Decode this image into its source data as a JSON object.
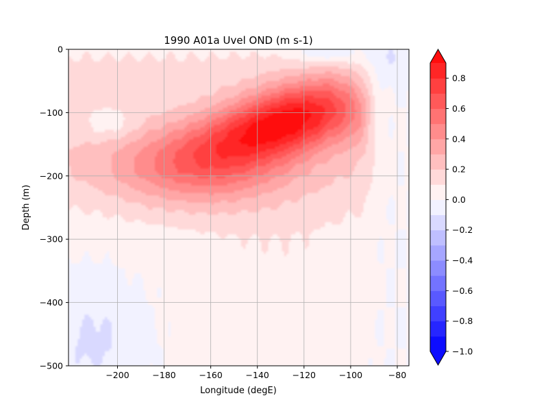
{
  "chart_data": {
    "type": "heatmap",
    "title": "1990 A01a  Uvel OND (m s-1)",
    "xlabel": "Longitude (degE)",
    "ylabel": "Depth (m)",
    "xlim": [
      -221,
      -75
    ],
    "ylim": [
      -500,
      0
    ],
    "x_ticks": [
      -200,
      -180,
      -160,
      -140,
      -120,
      -100,
      -80
    ],
    "y_ticks": [
      0,
      -100,
      -200,
      -300,
      -400,
      -500
    ],
    "grid": true,
    "colorbar": {
      "levels": [
        -1.0,
        -0.9,
        -0.8,
        -0.7,
        -0.6,
        -0.5,
        -0.4,
        -0.3,
        -0.2,
        -0.1,
        0.0,
        0.1,
        0.2,
        0.3,
        0.4,
        0.5,
        0.6,
        0.7,
        0.8,
        0.9
      ],
      "tick_values": [
        0.8,
        0.6,
        0.4,
        0.2,
        0.0,
        -0.2,
        -0.4,
        -0.6,
        -0.8,
        -1.0
      ],
      "tick_labels": [
        "0.8",
        "0.6",
        "0.4",
        "0.2",
        "0.0",
        "−0.2",
        "−0.4",
        "−0.6",
        "−0.8",
        "−1.0"
      ],
      "extend": "both",
      "colormap": "bwr"
    },
    "contour_values": [
      0.1
    ],
    "estimated_field": {
      "note_units": "m s-1",
      "core": {
        "longitude": -125,
        "depth": -110,
        "max_speed": 0.85
      },
      "eastern_edge_longitude": -92
    }
  }
}
